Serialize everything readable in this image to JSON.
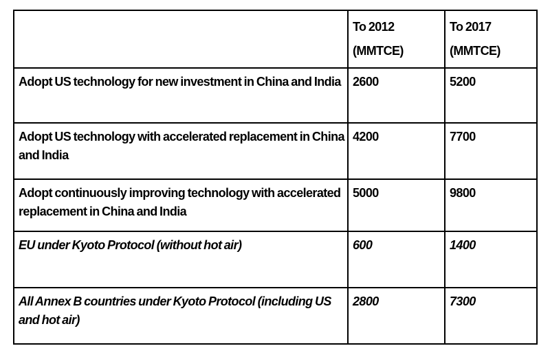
{
  "table": {
    "headers": [
      {
        "line1": "",
        "line2": ""
      },
      {
        "line1": "To 2012",
        "line2": "(MMTCE)"
      },
      {
        "line1": "To 2017",
        "line2": "(MMTCE)"
      }
    ],
    "rows": [
      {
        "label": "Adopt US technology for new investment in China and India",
        "v2012": "2600",
        "v2017": "5200",
        "italic": false
      },
      {
        "label": "Adopt US technology with accelerated replacement in China and India",
        "v2012": "4200",
        "v2017": "7700",
        "italic": false
      },
      {
        "label": "Adopt continuously improving technology with accelerated replacement in China and India",
        "v2012": "5000",
        "v2017": "9800",
        "italic": false
      },
      {
        "label": "EU under Kyoto Protocol (without hot air)",
        "v2012": "600",
        "v2017": "1400",
        "italic": true
      },
      {
        "label": "All Annex B countries under Kyoto Protocol (including US and hot air)",
        "v2012": "2800",
        "v2017": "7300",
        "italic": true
      }
    ]
  }
}
